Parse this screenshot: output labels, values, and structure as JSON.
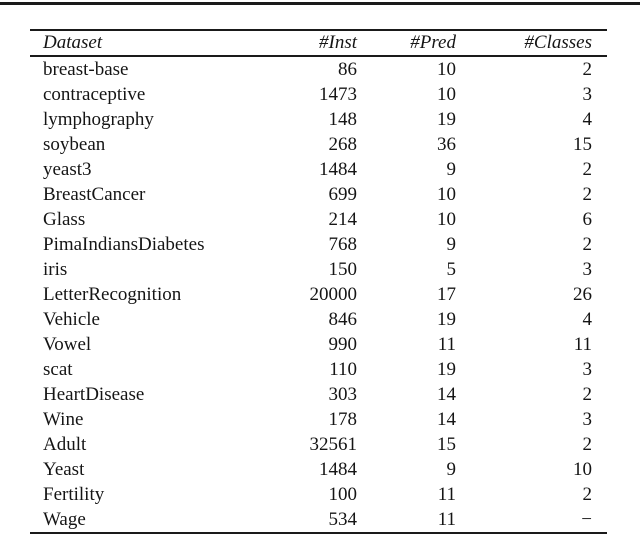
{
  "colors": {
    "background": "#ffffff",
    "text": "#151515",
    "rule": "#1a1a1a"
  },
  "table": {
    "columns": [
      {
        "label": "Dataset",
        "align": "left"
      },
      {
        "label": "#Inst",
        "align": "right"
      },
      {
        "label": "#Pred",
        "align": "right"
      },
      {
        "label": "#Classes",
        "align": "right"
      }
    ],
    "rows": [
      [
        "breast-base",
        "86",
        "10",
        "2"
      ],
      [
        "contraceptive",
        "1473",
        "10",
        "3"
      ],
      [
        "lymphography",
        "148",
        "19",
        "4"
      ],
      [
        "soybean",
        "268",
        "36",
        "15"
      ],
      [
        "yeast3",
        "1484",
        "9",
        "2"
      ],
      [
        "BreastCancer",
        "699",
        "10",
        "2"
      ],
      [
        "Glass",
        "214",
        "10",
        "6"
      ],
      [
        "PimaIndiansDiabetes",
        "768",
        "9",
        "2"
      ],
      [
        "iris",
        "150",
        "5",
        "3"
      ],
      [
        "LetterRecognition",
        "20000",
        "17",
        "26"
      ],
      [
        "Vehicle",
        "846",
        "19",
        "4"
      ],
      [
        "Vowel",
        "990",
        "11",
        "11"
      ],
      [
        "scat",
        "110",
        "19",
        "3"
      ],
      [
        "HeartDisease",
        "303",
        "14",
        "2"
      ],
      [
        "Wine",
        "178",
        "14",
        "3"
      ],
      [
        "Adult",
        "32561",
        "15",
        "2"
      ],
      [
        "Yeast",
        "1484",
        "9",
        "10"
      ],
      [
        "Fertility",
        "100",
        "11",
        "2"
      ],
      [
        "Wage",
        "534",
        "11",
        "−"
      ]
    ]
  }
}
